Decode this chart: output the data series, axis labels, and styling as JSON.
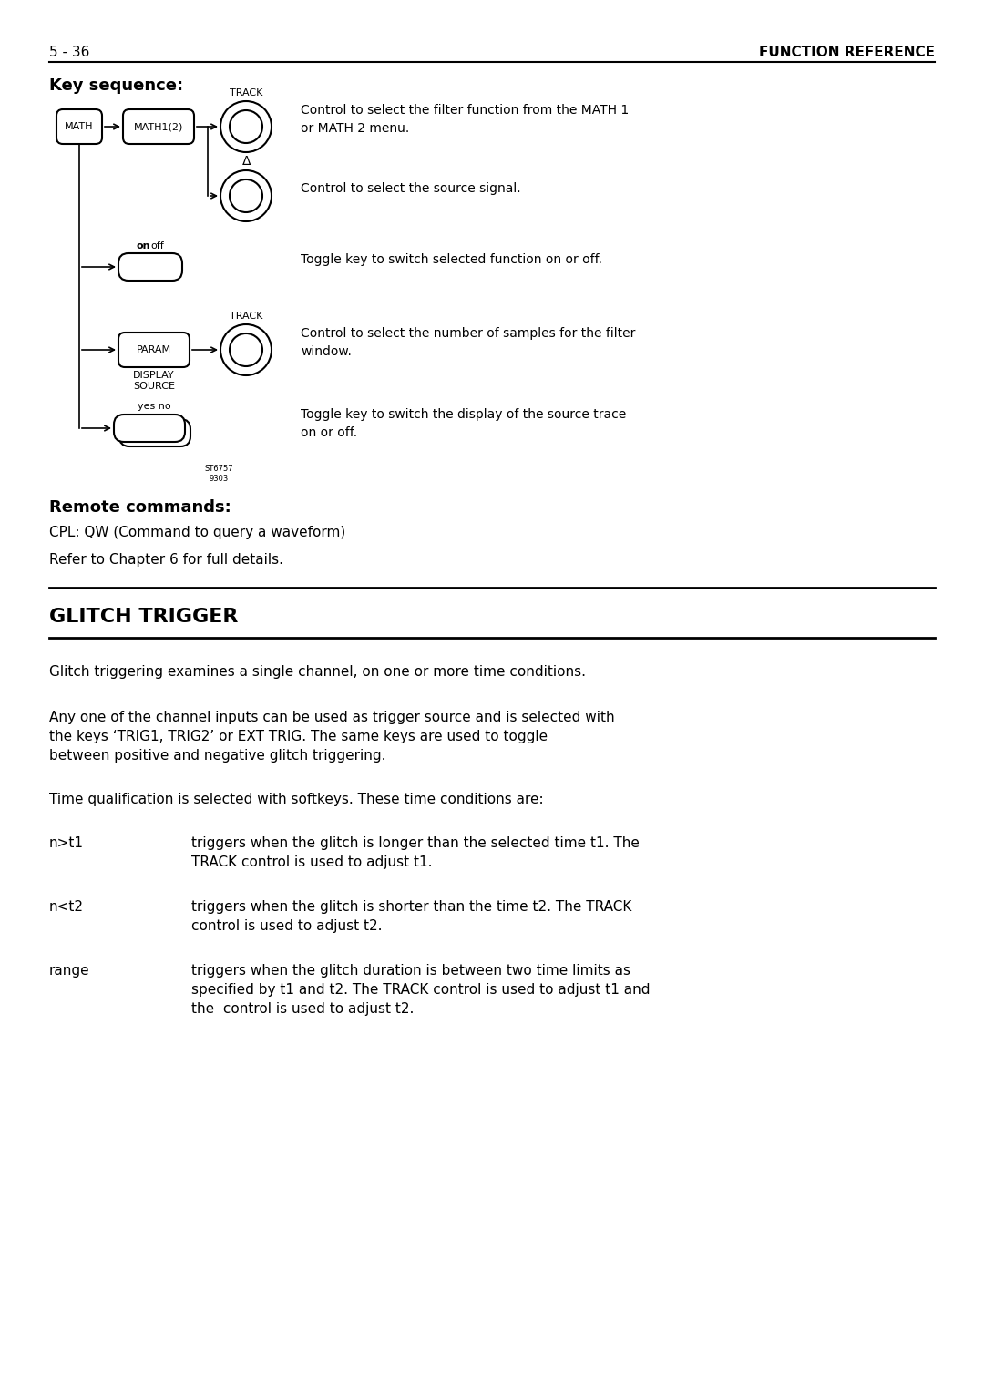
{
  "page_number": "5 - 36",
  "page_header": "FUNCTION REFERENCE",
  "bg_color": "#ffffff",
  "text_color": "#000000",
  "key_sequence_label": "Key sequence:",
  "remote_commands_label": "Remote commands:",
  "glitch_trigger_title": "GLITCH TRIGGER",
  "diagram": {
    "math_label": "MATH",
    "math12_label": "MATH1(2)",
    "track_label": "TRACK",
    "delta_label": "Δ",
    "on_label": "on",
    "off_label": " off",
    "param_label": "PARAM",
    "display_source_label": "DISPLAY\nSOURCE",
    "yes_no_label": "yes no",
    "track2_label": "TRACK",
    "watermark": "ST6757\n9303"
  },
  "descriptions": [
    "Control to select the filter function from the MATH 1\nor MATH 2 menu.",
    "Control to select the source signal.",
    "Toggle key to switch selected function on or off.",
    "Control to select the number of samples for the filter\nwindow.",
    "Toggle key to switch the display of the source trace\non or off."
  ],
  "cpl_line": "CPL: QW (Command to query a waveform)",
  "refer_line": "Refer to Chapter 6 for full details.",
  "glitch_para1": "Glitch triggering examines a single channel, on one or more time conditions.",
  "glitch_para2": "Any one of the channel inputs can be used as trigger source and is selected with\nthe keys ‘TRIG1, TRIG2’ or EXT TRIG. The same keys are used to toggle\nbetween positive and negative glitch triggering.",
  "glitch_para3": "Time qualification is selected with softkeys. These time conditions are:",
  "glitch_items": [
    {
      "term": "n>t1",
      "desc": "triggers when the glitch is longer than the selected time t1. The\nTRACK control is used to adjust t1."
    },
    {
      "term": "n<t2",
      "desc": "triggers when the glitch is shorter than the time t2. The TRACK\ncontrol is used to adjust t2."
    },
    {
      "term": "range",
      "desc": "triggers when the glitch duration is between two time limits as\nspecified by t1 and t2. The TRACK control is used to adjust t1 and\nthe  control is used to adjust t2."
    }
  ]
}
